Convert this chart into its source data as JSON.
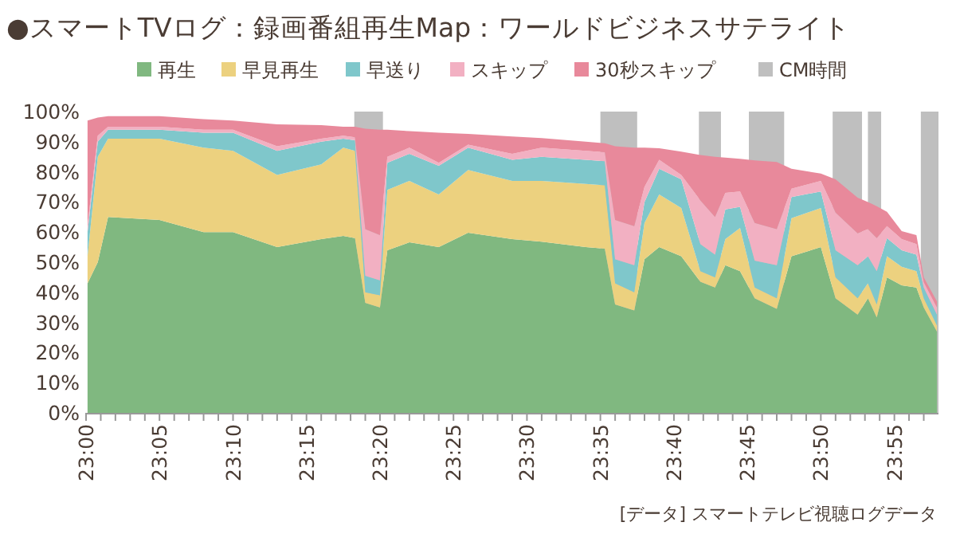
{
  "chart_data": {
    "type": "area",
    "stacked": true,
    "title": "●スマートTVログ：録画番組再生Map：ワールドビジネスサテライト",
    "x": [
      23.0017,
      23.0133,
      23.025,
      23.0833,
      23.1333,
      23.1667,
      23.2167,
      23.2667,
      23.2917,
      23.305,
      23.3167,
      23.3333,
      23.3417,
      23.3667,
      23.4,
      23.4333,
      23.4833,
      23.5167,
      23.5667,
      23.5883,
      23.6,
      23.6217,
      23.6333,
      23.65,
      23.675,
      23.6967,
      23.7133,
      23.725,
      23.7417,
      23.7583,
      23.7833,
      23.8,
      23.8333,
      23.85,
      23.875,
      23.8867,
      23.8967,
      23.9083,
      23.925,
      23.9417,
      23.95,
      23.965
    ],
    "series": [
      {
        "name": "再生",
        "color": "#80b880",
        "values": [
          43,
          50,
          65,
          64,
          60,
          60,
          55,
          57.7,
          58.7,
          58,
          36.5,
          35,
          54,
          56.6,
          55,
          59.8,
          57.7,
          56.8,
          55,
          54.5,
          36,
          34,
          51,
          55,
          52,
          43.5,
          41.6,
          49,
          47,
          38,
          34.5,
          52,
          55,
          38,
          32.6,
          38,
          31.7,
          45,
          42.3,
          41.6,
          35,
          27
        ]
      },
      {
        "name": "早見再生",
        "color": "#ecd17f",
        "values": [
          9,
          35,
          26,
          27,
          28,
          27,
          24,
          24.8,
          29.3,
          29,
          3.5,
          4,
          20,
          20.4,
          17.5,
          20.8,
          19.3,
          20.2,
          21,
          21,
          7,
          6,
          12,
          17.5,
          16,
          3.5,
          3.4,
          8.7,
          14.4,
          3.6,
          3.5,
          12.6,
          13,
          7,
          5.4,
          5,
          4.3,
          7,
          6.2,
          5.4,
          3,
          2
        ]
      },
      {
        "name": "早送り",
        "color": "#7fc7cb",
        "values": [
          8,
          5,
          3,
          3,
          5,
          6,
          8,
          7.5,
          3,
          3.5,
          5.5,
          5,
          9,
          9,
          9.5,
          7.4,
          7,
          8,
          8,
          8,
          8,
          9,
          7,
          8.5,
          9.5,
          9,
          7.5,
          9.8,
          7,
          8.9,
          11,
          7,
          5.5,
          9,
          11,
          9,
          11,
          6,
          5.5,
          5.5,
          3.6,
          3.6
        ]
      },
      {
        "name": "スキップ",
        "color": "#f2b0c2",
        "values": [
          2,
          2,
          1,
          1,
          1,
          1,
          1.5,
          1,
          1,
          1,
          15.5,
          15,
          2,
          2,
          1,
          1,
          2,
          3,
          3,
          3,
          13,
          13,
          5,
          3,
          1.5,
          14.5,
          12.5,
          5.5,
          5.1,
          12.5,
          12,
          2.8,
          3.5,
          12.5,
          10.6,
          9,
          11,
          4,
          3.7,
          3.5,
          1.8,
          2.4
        ]
      },
      {
        "name": "30秒スキップ",
        "color": "#e8899b",
        "values": [
          35,
          6,
          3.5,
          3.5,
          3.5,
          3,
          7.3,
          4.5,
          3,
          3.5,
          33.3,
          35,
          9,
          5.5,
          10,
          3.6,
          5.7,
          3.2,
          3,
          3,
          24.5,
          26,
          13,
          3.8,
          7.7,
          15.1,
          20,
          11.7,
          10.8,
          20.8,
          22.3,
          6.6,
          2.4,
          11,
          11.8,
          9,
          10.6,
          4.7,
          2.6,
          3,
          1.6,
          2
        ]
      }
    ],
    "bands": [
      {
        "axis": "x",
        "from": 23.3042,
        "to": 23.3367,
        "label": "CM時間",
        "color": "#bfbfbf"
      },
      {
        "axis": "x",
        "from": 23.5833,
        "to": 23.625,
        "color": "#bfbfbf"
      },
      {
        "axis": "x",
        "from": 23.695,
        "to": 23.72,
        "color": "#bfbfbf"
      },
      {
        "axis": "x",
        "from": 23.7517,
        "to": 23.7917,
        "color": "#bfbfbf"
      },
      {
        "axis": "x",
        "from": 23.8467,
        "to": 23.88,
        "color": "#bfbfbf"
      },
      {
        "axis": "x",
        "from": 23.8867,
        "to": 23.9017,
        "color": "#bfbfbf"
      },
      {
        "axis": "x",
        "from": 23.9467,
        "to": 23.9667,
        "color": "#bfbfbf"
      }
    ],
    "xlim": [
      23,
      23.9667
    ],
    "xticks": [
      {
        "value": 23,
        "label": "23:00"
      },
      {
        "value": 23.0167,
        "label": null
      },
      {
        "value": 23.0333,
        "label": null
      },
      {
        "value": 23.05,
        "label": null
      },
      {
        "value": 23.0667,
        "label": null
      },
      {
        "value": 23.0833,
        "label": "23:05"
      },
      {
        "value": 23.1,
        "label": null
      },
      {
        "value": 23.1167,
        "label": null
      },
      {
        "value": 23.1333,
        "label": null
      },
      {
        "value": 23.15,
        "label": null
      },
      {
        "value": 23.1667,
        "label": "23:10"
      },
      {
        "value": 23.1833,
        "label": null
      },
      {
        "value": 23.2,
        "label": null
      },
      {
        "value": 23.2167,
        "label": null
      },
      {
        "value": 23.2333,
        "label": null
      },
      {
        "value": 23.25,
        "label": "23:15"
      },
      {
        "value": 23.2667,
        "label": null
      },
      {
        "value": 23.2833,
        "label": null
      },
      {
        "value": 23.3,
        "label": null
      },
      {
        "value": 23.3167,
        "label": null
      },
      {
        "value": 23.3333,
        "label": "23:20"
      },
      {
        "value": 23.35,
        "label": null
      },
      {
        "value": 23.3667,
        "label": null
      },
      {
        "value": 23.3833,
        "label": null
      },
      {
        "value": 23.4,
        "label": null
      },
      {
        "value": 23.4167,
        "label": "23:25"
      },
      {
        "value": 23.4333,
        "label": null
      },
      {
        "value": 23.45,
        "label": null
      },
      {
        "value": 23.4667,
        "label": null
      },
      {
        "value": 23.4833,
        "label": null
      },
      {
        "value": 23.5,
        "label": "23:30"
      },
      {
        "value": 23.5167,
        "label": null
      },
      {
        "value": 23.5333,
        "label": null
      },
      {
        "value": 23.55,
        "label": null
      },
      {
        "value": 23.5667,
        "label": null
      },
      {
        "value": 23.5833,
        "label": "23:35"
      },
      {
        "value": 23.6,
        "label": null
      },
      {
        "value": 23.6167,
        "label": null
      },
      {
        "value": 23.6333,
        "label": null
      },
      {
        "value": 23.65,
        "label": null
      },
      {
        "value": 23.6667,
        "label": "23:40"
      },
      {
        "value": 23.6833,
        "label": null
      },
      {
        "value": 23.7,
        "label": null
      },
      {
        "value": 23.7167,
        "label": null
      },
      {
        "value": 23.7333,
        "label": null
      },
      {
        "value": 23.75,
        "label": "23:45"
      },
      {
        "value": 23.7667,
        "label": null
      },
      {
        "value": 23.7833,
        "label": null
      },
      {
        "value": 23.8,
        "label": null
      },
      {
        "value": 23.8167,
        "label": null
      },
      {
        "value": 23.8333,
        "label": "23:50"
      },
      {
        "value": 23.85,
        "label": null
      },
      {
        "value": 23.8667,
        "label": null
      },
      {
        "value": 23.8833,
        "label": null
      },
      {
        "value": 23.9,
        "label": null
      },
      {
        "value": 23.9167,
        "label": "23:55"
      },
      {
        "value": 23.9333,
        "label": null
      },
      {
        "value": 23.95,
        "label": null
      }
    ],
    "ylim": [
      0,
      100
    ],
    "yticks": [
      {
        "value": 0,
        "label": "0%"
      },
      {
        "value": 10,
        "label": "10%"
      },
      {
        "value": 20,
        "label": "20%"
      },
      {
        "value": 30,
        "label": "30%"
      },
      {
        "value": 40,
        "label": "40%"
      },
      {
        "value": 50,
        "label": "50%"
      },
      {
        "value": 60,
        "label": "60%"
      },
      {
        "value": 70,
        "label": "70%"
      },
      {
        "value": 80,
        "label": "80%"
      },
      {
        "value": 90,
        "label": "90%"
      },
      {
        "value": 100,
        "label": "100%"
      }
    ],
    "legend": "top",
    "annotations": [
      "[データ] スマートテレビ視聴ログデータ"
    ]
  }
}
